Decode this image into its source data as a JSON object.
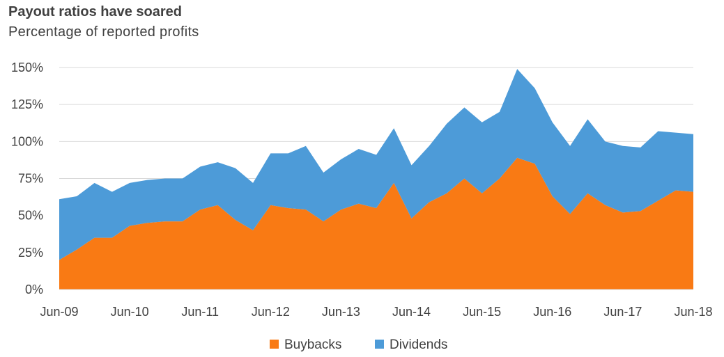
{
  "chart_data": {
    "type": "area",
    "stacked": true,
    "title": "Payout ratios have soared",
    "subtitle": "Percentage of reported profits",
    "xlabel": "",
    "ylabel": "",
    "ylim": [
      0,
      150
    ],
    "yticks": [
      "150%",
      "125%",
      "100%",
      "75%",
      "50%",
      "25%",
      "0%"
    ],
    "ytick_values": [
      150,
      125,
      100,
      75,
      50,
      25,
      0
    ],
    "xtick_labels": [
      "Jun-09",
      "Jun-10",
      "Jun-11",
      "Jun-12",
      "Jun-13",
      "Jun-14",
      "Jun-15",
      "Jun-16",
      "Jun-17",
      "Jun-18"
    ],
    "frequency": "quarterly",
    "grid": "horizontal",
    "legend_position": "bottom",
    "series": [
      {
        "name": "Buybacks",
        "color": "#f97a14",
        "values": [
          20,
          27,
          35,
          35,
          43,
          45,
          46,
          46,
          54,
          57,
          47,
          40,
          57,
          55,
          54,
          46,
          54,
          58,
          55,
          72,
          48,
          59,
          65,
          75,
          65,
          75,
          89,
          85,
          63,
          51,
          65,
          57,
          52,
          53,
          60,
          67,
          66
        ]
      },
      {
        "name": "Dividends",
        "color": "#4d9bd8",
        "values": [
          41,
          36,
          37,
          31,
          29,
          29,
          29,
          29,
          29,
          29,
          35,
          32,
          35,
          37,
          43,
          33,
          34,
          37,
          36,
          37,
          36,
          38,
          47,
          48,
          48,
          45,
          60,
          51,
          50,
          46,
          50,
          43,
          45,
          43,
          47,
          39,
          39
        ]
      }
    ]
  }
}
